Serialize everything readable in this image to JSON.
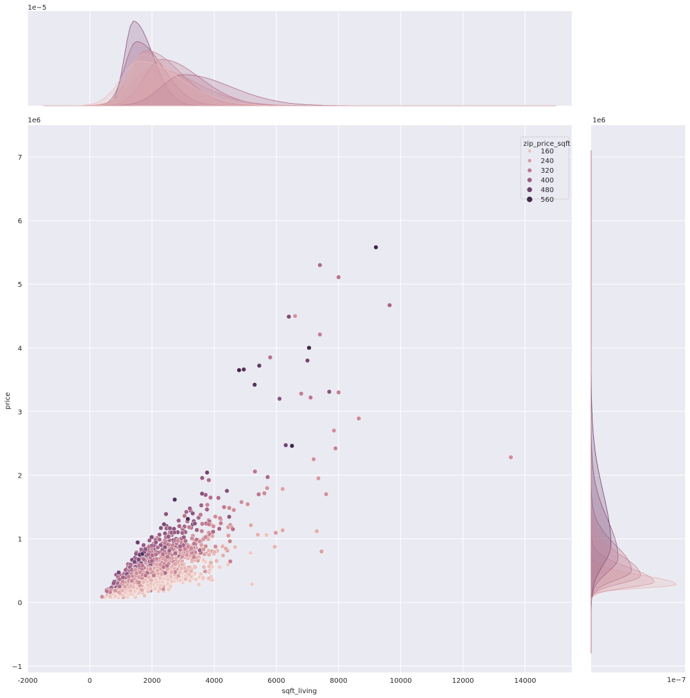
{
  "chart_data": {
    "type": "scatter",
    "xlabel": "sqft_living",
    "ylabel": "price",
    "x_ticks": [
      "-2000",
      "0",
      "2000",
      "4000",
      "6000",
      "8000",
      "10000",
      "12000",
      "14000"
    ],
    "y_ticks": [
      "−1",
      "0",
      "1",
      "2",
      "3",
      "4",
      "5",
      "6",
      "7"
    ],
    "xlim": [
      -2000,
      15500
    ],
    "ylim": [
      -1100000,
      7500000
    ],
    "y_offset_label": "1e6",
    "top_marginal_offset_label": "1e−5",
    "right_marginal_offset_label": "1e6",
    "right_marginal_x_offset_label": "1e−7",
    "legend": {
      "title": "zip_price_sqft",
      "position": "top-right",
      "entries": [
        {
          "label": "160",
          "value": 160
        },
        {
          "label": "240",
          "value": 240
        },
        {
          "label": "320",
          "value": 320
        },
        {
          "label": "400",
          "value": 400
        },
        {
          "label": "480",
          "value": 480
        },
        {
          "label": "560",
          "value": 560
        }
      ]
    },
    "color_scale": {
      "min": 120,
      "max": 600,
      "stops": [
        "#f0cfc9",
        "#e0a8a8",
        "#c0798f",
        "#955a84",
        "#5f3666",
        "#2b1a36"
      ]
    },
    "highlighted_points": [
      {
        "x": 9200,
        "y": 5580000,
        "hue": 560
      },
      {
        "x": 7400,
        "y": 5300000,
        "hue": 360
      },
      {
        "x": 8000,
        "y": 5110000,
        "hue": 330
      },
      {
        "x": 9640,
        "y": 4670000,
        "hue": 370
      },
      {
        "x": 6400,
        "y": 4490000,
        "hue": 450
      },
      {
        "x": 6600,
        "y": 4500000,
        "hue": 260
      },
      {
        "x": 7400,
        "y": 4210000,
        "hue": 300
      },
      {
        "x": 7050,
        "y": 4000000,
        "hue": 560
      },
      {
        "x": 7000,
        "y": 3800000,
        "hue": 460
      },
      {
        "x": 5800,
        "y": 3850000,
        "hue": 330
      },
      {
        "x": 5450,
        "y": 3720000,
        "hue": 500
      },
      {
        "x": 4800,
        "y": 3650000,
        "hue": 560
      },
      {
        "x": 4950,
        "y": 3660000,
        "hue": 520
      },
      {
        "x": 5300,
        "y": 3420000,
        "hue": 520
      },
      {
        "x": 6800,
        "y": 3280000,
        "hue": 300
      },
      {
        "x": 7100,
        "y": 3220000,
        "hue": 320
      },
      {
        "x": 7700,
        "y": 3310000,
        "hue": 430
      },
      {
        "x": 8000,
        "y": 3300000,
        "hue": 300
      },
      {
        "x": 6100,
        "y": 3200000,
        "hue": 430
      },
      {
        "x": 8650,
        "y": 2890000,
        "hue": 280
      },
      {
        "x": 7850,
        "y": 2700000,
        "hue": 260
      },
      {
        "x": 7900,
        "y": 2420000,
        "hue": 290
      },
      {
        "x": 6500,
        "y": 2460000,
        "hue": 560
      },
      {
        "x": 6300,
        "y": 2470000,
        "hue": 470
      },
      {
        "x": 7200,
        "y": 2250000,
        "hue": 260
      },
      {
        "x": 7350,
        "y": 1950000,
        "hue": 240
      },
      {
        "x": 7600,
        "y": 1700000,
        "hue": 260
      },
      {
        "x": 7300,
        "y": 1120000,
        "hue": 200
      },
      {
        "x": 7450,
        "y": 800000,
        "hue": 230
      },
      {
        "x": 13540,
        "y": 2280000,
        "hue": 270
      }
    ]
  }
}
